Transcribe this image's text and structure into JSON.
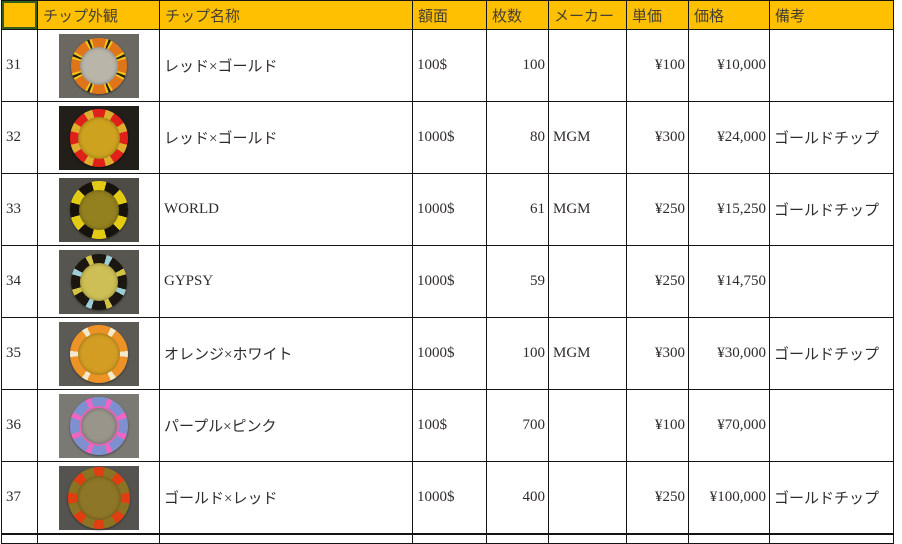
{
  "accent": {
    "header_bg": "#FEC000",
    "grid_line": "#141414",
    "selection_border": "#35601C"
  },
  "table": {
    "headers": [
      "",
      "チップ外観",
      "チップ名称",
      "額面",
      "枚数",
      "メーカー",
      "単価",
      "価格",
      "備考"
    ],
    "rows": [
      {
        "num": "31",
        "name": "レッド×ゴールド",
        "denom": "100$",
        "count": "100",
        "maker": "",
        "unit_price": "¥100",
        "price": "¥10,000",
        "notes": "",
        "chip": {
          "alt": "orange-chip-silver-center",
          "bg": "#6B6862",
          "ring": "#E07418",
          "count": 8,
          "sub": [
            [
              "#EEC11C",
              5
            ],
            [
              "#24200F",
              5
            ],
            [
              "#EEC11C",
              5
            ]
          ],
          "center": "#B9B5A9",
          "size": 56,
          "centerSize": 38
        }
      },
      {
        "num": "32",
        "name": "レッド×ゴールド",
        "denom": "1000$",
        "count": "80",
        "maker": "MGM",
        "unit_price": "¥300",
        "price": "¥24,000",
        "notes": "ゴールドチップ",
        "chip": {
          "alt": "red-chip-gold-center",
          "bg": "#221E19",
          "ring": "#DF2119",
          "count": 8,
          "sub": [
            [
              "#DFAD2D",
              18
            ]
          ],
          "center": "#CDA21F",
          "size": 58,
          "centerSize": 42
        }
      },
      {
        "num": "33",
        "name": "WORLD",
        "denom": "1000$",
        "count": "61",
        "maker": "MGM",
        "unit_price": "¥250",
        "price": "¥15,250",
        "notes": "ゴールドチップ",
        "chip": {
          "alt": "yellow-black-chip-gold-center",
          "bg": "#4E4C47",
          "ring": "#E3CB14",
          "count": 6,
          "sub": [
            [
              "#17120B",
              30
            ]
          ],
          "center": "#93801F",
          "size": 58,
          "centerSize": 40
        }
      },
      {
        "num": "34",
        "name": "GYPSY",
        "denom": "1000$",
        "count": "59",
        "maker": "",
        "unit_price": "¥250",
        "price": "¥14,750",
        "notes": "",
        "chip": {
          "alt": "black-chip-cyan-yellow-marks",
          "bg": "#57554F",
          "ring": "#1B160F",
          "count": 8,
          "sub": [
            [
              "#9CCDD5",
              13
            ]
          ],
          "altSub": [
            [
              "#D2C243",
              13
            ]
          ],
          "center": "#CDBF55",
          "size": 56,
          "centerSize": 38
        }
      },
      {
        "num": "35",
        "name": "オレンジ×ホワイト",
        "denom": "1000$",
        "count": "100",
        "maker": "MGM",
        "unit_price": "¥300",
        "price": "¥30,000",
        "notes": "ゴールドチップ",
        "chip": {
          "alt": "orange-chip-white-marks",
          "bg": "#5C5A55",
          "ring": "#EC9227",
          "count": 6,
          "sub": [
            [
              "#F4E9CB",
              12
            ]
          ],
          "center": "#D29D22",
          "size": 58,
          "centerSize": 42
        }
      },
      {
        "num": "36",
        "name": "パープル×ピンク",
        "denom": "100$",
        "count": "700",
        "maker": "",
        "unit_price": "¥100",
        "price": "¥70,000",
        "notes": "",
        "chip": {
          "alt": "periwinkle-chip-pink-marks",
          "bg": "#7B7974",
          "ring": "#7E90D0",
          "count": 8,
          "sub": [
            [
              "#EE66C2",
              12
            ]
          ],
          "center": "#99958B",
          "centerRing": "#DF66B4",
          "size": 58,
          "centerSize": 36
        }
      },
      {
        "num": "37",
        "name": "ゴールド×レッド",
        "denom": "1000$",
        "count": "400",
        "maker": "",
        "unit_price": "¥250",
        "price": "¥100,000",
        "notes": "ゴールドチップ",
        "chip": {
          "alt": "red-gold-wedge-chip",
          "bg": "#555350",
          "ring": "#E03D10",
          "count": 8,
          "sub": [
            [
              "#8A7322",
              24
            ]
          ],
          "center": "#8D7627",
          "size": 62,
          "centerSize": 44
        }
      }
    ]
  }
}
